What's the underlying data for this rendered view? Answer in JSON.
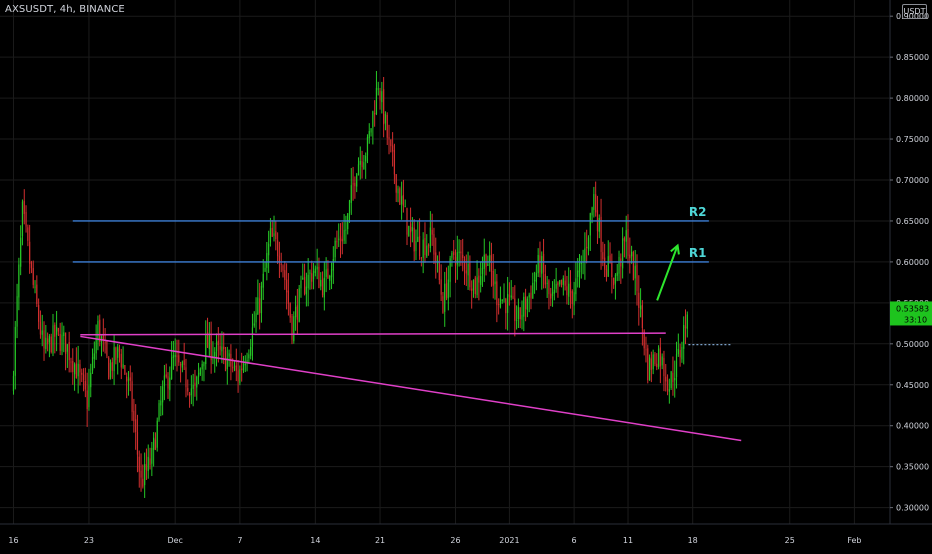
{
  "header": {
    "title": "AXSUSDT, 4h, BINANCE",
    "currency": "USDT"
  },
  "price_labels": {
    "last_price": "0.53583",
    "countdown": "33:10"
  },
  "colors": {
    "background": "#000000",
    "grid": "#1b1b1b",
    "up": "#26c626",
    "down": "#d32f2f",
    "level_line": "#3d7fd6",
    "level_text": "#4fd7d7",
    "trend_line": "#e040c8",
    "arrow": "#2ee62e",
    "price_tag": "#1ec41e",
    "axis_text": "#d1d4dc"
  },
  "chart_data": {
    "type": "candlestick",
    "symbol": "AXSUSDT",
    "interval": "4h",
    "exchange": "BINANCE",
    "yaxis": {
      "scale": "linear",
      "position": "right",
      "range": [
        0.28,
        0.91
      ],
      "ticks": [
        0.3,
        0.35,
        0.4,
        0.45,
        0.5,
        0.55,
        0.6,
        0.65,
        0.7,
        0.75,
        0.8,
        0.85,
        0.9
      ],
      "tick_labels": [
        "0.30000",
        "0.35000",
        "0.40000",
        "0.45000",
        "0.50000",
        "0.55000",
        "0.60000",
        "0.65000",
        "0.70000",
        "0.75000",
        "0.80000",
        "0.85000",
        "0.90000"
      ]
    },
    "xaxis": {
      "unit": "days since Nov 16, 2020",
      "range": [
        -1.25,
        81.3
      ],
      "ticks": [
        0,
        7,
        15,
        21,
        28,
        34,
        41,
        46,
        52,
        57,
        63,
        72,
        78
      ],
      "tick_labels": [
        "16",
        "23",
        "Dec",
        "7",
        "14",
        "21",
        "26",
        "2021",
        "6",
        "11",
        "18",
        "25",
        "Feb"
      ]
    },
    "grid": true,
    "price_path": [
      [
        0,
        0.44
      ],
      [
        1,
        0.66
      ],
      [
        2,
        0.57
      ],
      [
        3,
        0.49
      ],
      [
        4,
        0.51
      ],
      [
        5,
        0.5
      ],
      [
        6,
        0.47
      ],
      [
        7,
        0.43
      ],
      [
        8,
        0.52
      ],
      [
        9,
        0.47
      ],
      [
        10,
        0.49
      ],
      [
        11,
        0.44
      ],
      [
        12,
        0.33
      ],
      [
        13,
        0.36
      ],
      [
        14,
        0.44
      ],
      [
        15,
        0.48
      ],
      [
        16,
        0.46
      ],
      [
        17,
        0.44
      ],
      [
        18,
        0.5
      ],
      [
        19,
        0.49
      ],
      [
        20,
        0.48
      ],
      [
        21,
        0.46
      ],
      [
        22,
        0.5
      ],
      [
        23,
        0.55
      ],
      [
        24,
        0.63
      ],
      [
        25,
        0.61
      ],
      [
        26,
        0.52
      ],
      [
        27,
        0.57
      ],
      [
        28,
        0.59
      ],
      [
        29,
        0.57
      ],
      [
        30,
        0.62
      ],
      [
        31,
        0.64
      ],
      [
        32,
        0.72
      ],
      [
        33,
        0.74
      ],
      [
        34,
        0.82
      ],
      [
        35,
        0.74
      ],
      [
        36,
        0.68
      ],
      [
        37,
        0.63
      ],
      [
        38,
        0.62
      ],
      [
        39,
        0.63
      ],
      [
        40,
        0.55
      ],
      [
        41,
        0.61
      ],
      [
        42,
        0.6
      ],
      [
        43,
        0.57
      ],
      [
        44,
        0.61
      ],
      [
        45,
        0.56
      ],
      [
        46,
        0.55
      ],
      [
        47,
        0.53
      ],
      [
        48,
        0.56
      ],
      [
        49,
        0.6
      ],
      [
        50,
        0.55
      ],
      [
        51,
        0.57
      ],
      [
        52,
        0.56
      ],
      [
        53,
        0.6
      ],
      [
        54,
        0.68
      ],
      [
        55,
        0.6
      ],
      [
        56,
        0.58
      ],
      [
        57,
        0.63
      ],
      [
        58,
        0.57
      ],
      [
        59,
        0.47
      ],
      [
        60,
        0.49
      ],
      [
        61,
        0.45
      ],
      [
        62,
        0.49
      ],
      [
        62.6,
        0.536
      ]
    ],
    "current_price": 0.53583,
    "levels": [
      {
        "name": "R2",
        "price": 0.65,
        "from_day": 5.5,
        "to_day": 64.5
      },
      {
        "name": "R1",
        "price": 0.6,
        "from_day": 5.5,
        "to_day": 64.5
      }
    ],
    "trendlines": [
      {
        "from": [
          6.2,
          0.511
        ],
        "to": [
          60.5,
          0.513
        ]
      },
      {
        "from": [
          6.2,
          0.509
        ],
        "to": [
          67.5,
          0.382
        ]
      }
    ],
    "projection_arrow": {
      "from": [
        59.7,
        0.553
      ],
      "to": [
        61.6,
        0.62
      ]
    },
    "dotted_price_line": {
      "from_day": 62.6,
      "to_day": 66.5,
      "price": 0.499
    }
  }
}
